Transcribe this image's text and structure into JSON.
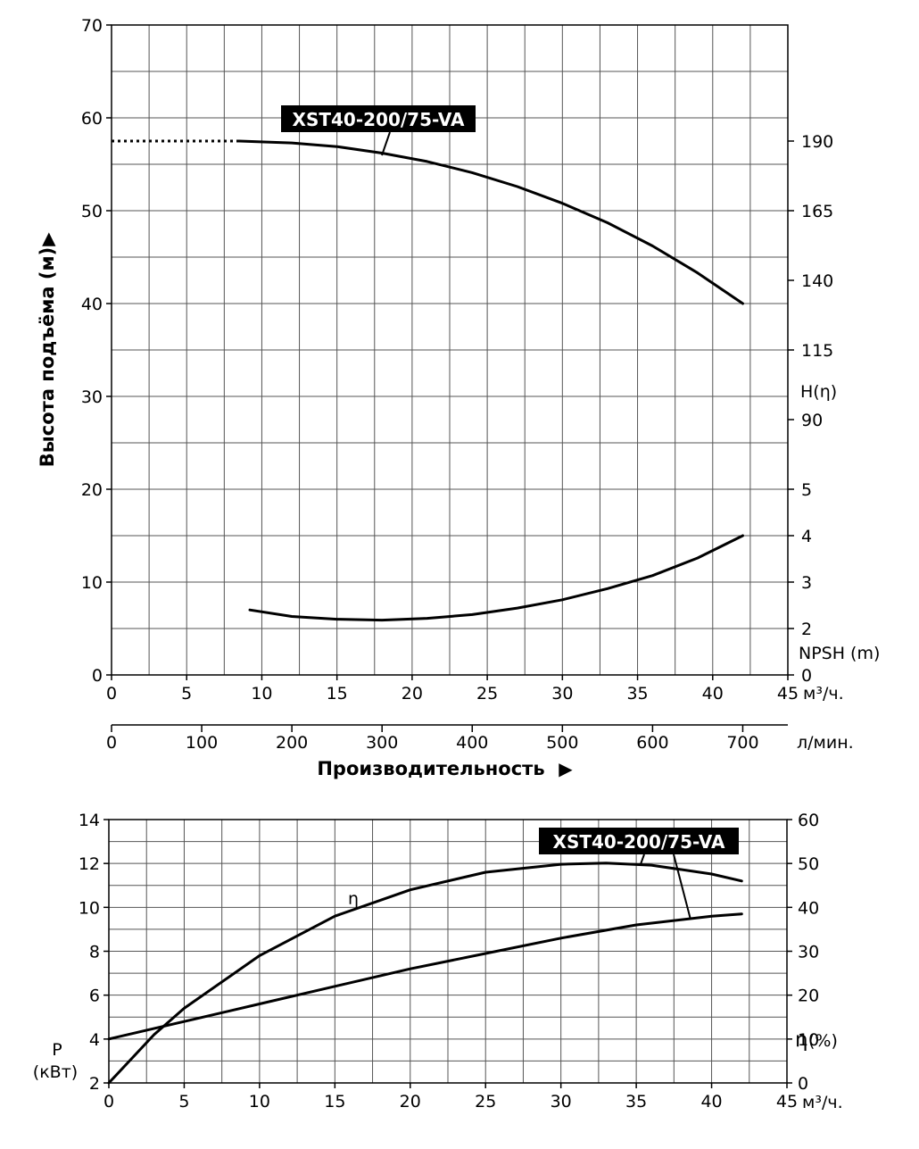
{
  "chart_data": [
    {
      "type": "line",
      "name": "head-npsh-chart",
      "model_label": "XST40-200/75-VA",
      "ylabel": "Высота подъёма (м)",
      "ylabel_arrow": "▶",
      "xlabel": "Производительность",
      "xlabel_arrow": "▶",
      "x_unit": "м³/ч.",
      "x2_unit": "л/мин.",
      "xlim": [
        0,
        45
      ],
      "ylim": [
        0,
        70
      ],
      "x_ticks": [
        0,
        5,
        10,
        15,
        20,
        25,
        30,
        35,
        40,
        45
      ],
      "y_ticks": [
        0,
        10,
        20,
        30,
        40,
        50,
        60,
        70
      ],
      "x2_ticks": [
        0,
        100,
        200,
        300,
        400,
        500,
        600,
        700
      ],
      "grid": true,
      "right_axis_head_label": "H(η)",
      "right_axis_head_ticks": [
        {
          "value": 190,
          "at": 57.5
        },
        {
          "value": 165,
          "at": 50
        },
        {
          "value": 140,
          "at": 42.5
        },
        {
          "value": 115,
          "at": 35
        },
        {
          "value": 90,
          "at": 27.5
        }
      ],
      "right_axis_npsh_label": "NPSH (m)",
      "right_axis_npsh_ticks": [
        {
          "value": 0,
          "at": 0
        },
        {
          "value": 2,
          "at": 5
        },
        {
          "value": 3,
          "at": 10
        },
        {
          "value": 4,
          "at": 15
        },
        {
          "value": 5,
          "at": 20
        }
      ],
      "series": [
        {
          "key": "head",
          "x": [
            8.5,
            12,
            15,
            18,
            21,
            24,
            27,
            30,
            33,
            36,
            39,
            42
          ],
          "y": [
            57.5,
            57.3,
            56.9,
            56.2,
            55.3,
            54.1,
            52.6,
            50.8,
            48.7,
            46.2,
            43.3,
            40.0
          ]
        },
        {
          "key": "head_dotted",
          "style": "dotted",
          "x": [
            0,
            8.5
          ],
          "y": [
            57.5,
            57.5
          ]
        },
        {
          "key": "npsh",
          "x": [
            9.2,
            12,
            15,
            18,
            21,
            24,
            27,
            30,
            33,
            36,
            39,
            42
          ],
          "y": [
            7.0,
            6.3,
            6.0,
            5.9,
            6.1,
            6.5,
            7.2,
            8.1,
            9.3,
            10.7,
            12.6,
            15.0
          ]
        }
      ]
    },
    {
      "type": "line",
      "name": "power-efficiency-chart",
      "model_label": "XST40-200/75-VA",
      "efficiency_curve_label": "η",
      "ylabel_line1": "P",
      "ylabel_line2": "(кВт)",
      "y2label_symbol": "η",
      "y2label_unit": "(%)",
      "x_unit": "м³/ч.",
      "xlim": [
        0,
        45
      ],
      "ylim": [
        2,
        14
      ],
      "y2lim": [
        0,
        60
      ],
      "x_ticks": [
        0,
        5,
        10,
        15,
        20,
        25,
        30,
        35,
        40,
        45
      ],
      "y_ticks": [
        2,
        4,
        6,
        8,
        10,
        12,
        14
      ],
      "y2_ticks": [
        0,
        10,
        20,
        30,
        40,
        50,
        60
      ],
      "grid": true,
      "series": [
        {
          "key": "power",
          "x": [
            0,
            5,
            10,
            15,
            20,
            25,
            30,
            35,
            40,
            42
          ],
          "y": [
            4.0,
            4.8,
            5.6,
            6.4,
            7.2,
            7.9,
            8.6,
            9.2,
            9.6,
            9.7
          ]
        },
        {
          "key": "efficiency",
          "x": [
            0,
            3,
            5,
            10,
            15,
            20,
            25,
            30,
            33,
            36,
            40,
            42
          ],
          "y": [
            0,
            11,
            17,
            29,
            38,
            44,
            48,
            49.8,
            50.1,
            49.6,
            47.6,
            46.0
          ]
        }
      ]
    }
  ]
}
